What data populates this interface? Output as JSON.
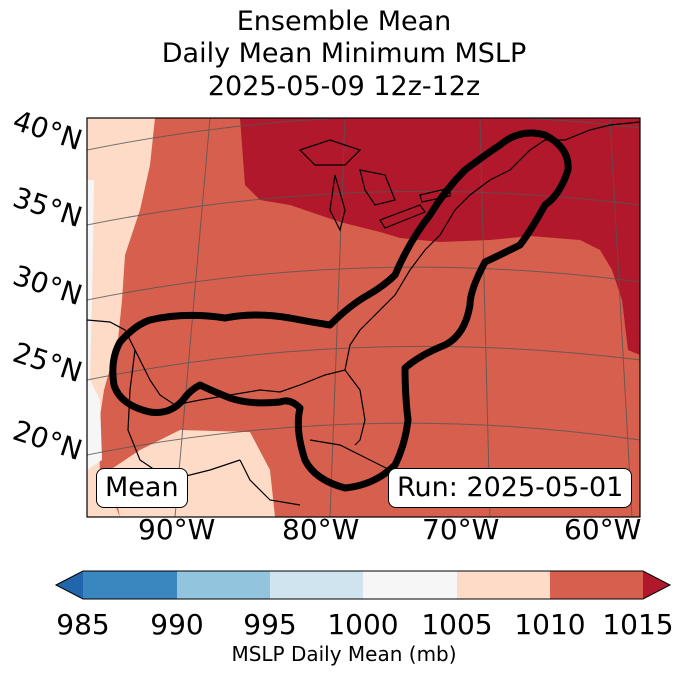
{
  "title": {
    "line1": "Ensemble Mean",
    "line2": "Daily Mean Minimum MSLP",
    "line3": "2025-05-09 12z-12z"
  },
  "map": {
    "lat_labels": [
      "40°N",
      "35°N",
      "30°N",
      "25°N",
      "20°N"
    ],
    "lon_labels": [
      "90°W",
      "80°W",
      "70°W",
      "60°W"
    ],
    "mean_box": "Mean",
    "run_box": "Run: 2025-05-01",
    "colors": {
      "c985_990": "#3a87bf",
      "c990_995": "#92c4de",
      "c995_1000": "#d0e4f0",
      "c1000_1005": "#f6f6f6",
      "c1005_1010": "#fddbc7",
      "c1010_1015": "#d6604d",
      "c_over": "#b2182b",
      "c_under": "#2166ac"
    }
  },
  "colorbar": {
    "ticks": [
      "985",
      "990",
      "995",
      "1000",
      "1005",
      "1010",
      "1015"
    ],
    "label": "MSLP Daily Mean (mb)"
  }
}
